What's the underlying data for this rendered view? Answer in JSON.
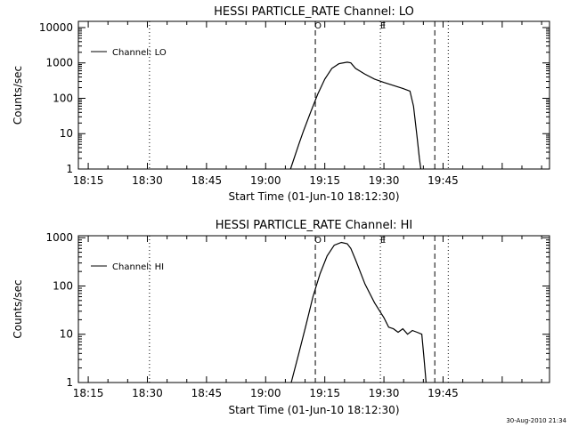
{
  "chart_data": [
    {
      "type": "line",
      "title": "HESSI PARTICLE_RATE Channel: LO",
      "xlabel": "Start Time (01-Jun-10 18:12:30)",
      "ylabel": "Counts/sec",
      "legend": "Channel: LO",
      "legend_position": "top-left",
      "xticks": [
        {
          "t": 18.25,
          "label": "18:15"
        },
        {
          "t": 18.5,
          "label": "18:30"
        },
        {
          "t": 18.75,
          "label": "18:45"
        },
        {
          "t": 19.0,
          "label": "19:00"
        },
        {
          "t": 19.25,
          "label": "19:15"
        },
        {
          "t": 19.5,
          "label": "19:30"
        },
        {
          "t": 19.75,
          "label": "19:45"
        }
      ],
      "yticks": [
        {
          "v": 1,
          "label": "1"
        },
        {
          "v": 10,
          "label": "10"
        },
        {
          "v": 100,
          "label": "100"
        },
        {
          "v": 1000,
          "label": "1000"
        },
        {
          "v": 10000,
          "label": "10000"
        }
      ],
      "xlim": [
        18.2083,
        20.2
      ],
      "ylim": [
        1,
        15000
      ],
      "log_y": true,
      "markers": [
        {
          "t": 18.509,
          "style": "dotted",
          "label": ""
        },
        {
          "t": 19.21,
          "style": "dashed",
          "label": "O"
        },
        {
          "t": 19.485,
          "style": "dotted",
          "label": "E"
        },
        {
          "t": 19.715,
          "style": "dashed",
          "label": ""
        },
        {
          "t": 19.772,
          "style": "dotted",
          "label": ""
        }
      ],
      "series": [
        {
          "name": "Channel: LO",
          "t": [
            19.105,
            19.14,
            19.16,
            19.19,
            19.22,
            19.25,
            19.28,
            19.31,
            19.345,
            19.36,
            19.38,
            19.42,
            19.46,
            19.5,
            19.54,
            19.58,
            19.61,
            19.625,
            19.64,
            19.65,
            19.656
          ],
          "v": [
            1,
            5,
            12,
            40,
            130,
            350,
            700,
            950,
            1050,
            1000,
            700,
            480,
            350,
            280,
            230,
            190,
            160,
            60,
            8,
            2,
            1
          ]
        }
      ]
    },
    {
      "type": "line",
      "title": "HESSI PARTICLE_RATE Channel: HI",
      "xlabel": "Start Time (01-Jun-10 18:12:30)",
      "ylabel": "Counts/sec",
      "legend": "Channel: HI",
      "legend_position": "top-left",
      "xticks": [
        {
          "t": 18.25,
          "label": "18:15"
        },
        {
          "t": 18.5,
          "label": "18:30"
        },
        {
          "t": 18.75,
          "label": "18:45"
        },
        {
          "t": 19.0,
          "label": "19:00"
        },
        {
          "t": 19.25,
          "label": "19:15"
        },
        {
          "t": 19.5,
          "label": "19:30"
        },
        {
          "t": 19.75,
          "label": "19:45"
        }
      ],
      "yticks": [
        {
          "v": 1,
          "label": "1"
        },
        {
          "v": 10,
          "label": "10"
        },
        {
          "v": 100,
          "label": "100"
        },
        {
          "v": 1000,
          "label": "1000"
        }
      ],
      "xlim": [
        18.2083,
        20.2
      ],
      "ylim": [
        1,
        1100
      ],
      "log_y": true,
      "markers": [
        {
          "t": 18.509,
          "style": "dotted",
          "label": ""
        },
        {
          "t": 19.21,
          "style": "dashed",
          "label": "O"
        },
        {
          "t": 19.485,
          "style": "dotted",
          "label": "E"
        },
        {
          "t": 19.715,
          "style": "dashed",
          "label": ""
        },
        {
          "t": 19.772,
          "style": "dotted",
          "label": ""
        }
      ],
      "series": [
        {
          "name": "Channel: HI",
          "t": [
            19.108,
            19.14,
            19.17,
            19.2,
            19.23,
            19.26,
            19.29,
            19.32,
            19.345,
            19.36,
            19.38,
            19.42,
            19.46,
            19.5,
            19.52,
            19.54,
            19.56,
            19.58,
            19.6,
            19.62,
            19.64,
            19.66,
            19.67,
            19.675,
            19.678
          ],
          "v": [
            1,
            4,
            15,
            60,
            180,
            420,
            700,
            800,
            750,
            600,
            350,
            110,
            45,
            22,
            14,
            13,
            11,
            13,
            10,
            12,
            11,
            10,
            3,
            1.5,
            1
          ]
        }
      ]
    }
  ],
  "footer": {
    "date": "30-Aug-2010 21:34"
  }
}
